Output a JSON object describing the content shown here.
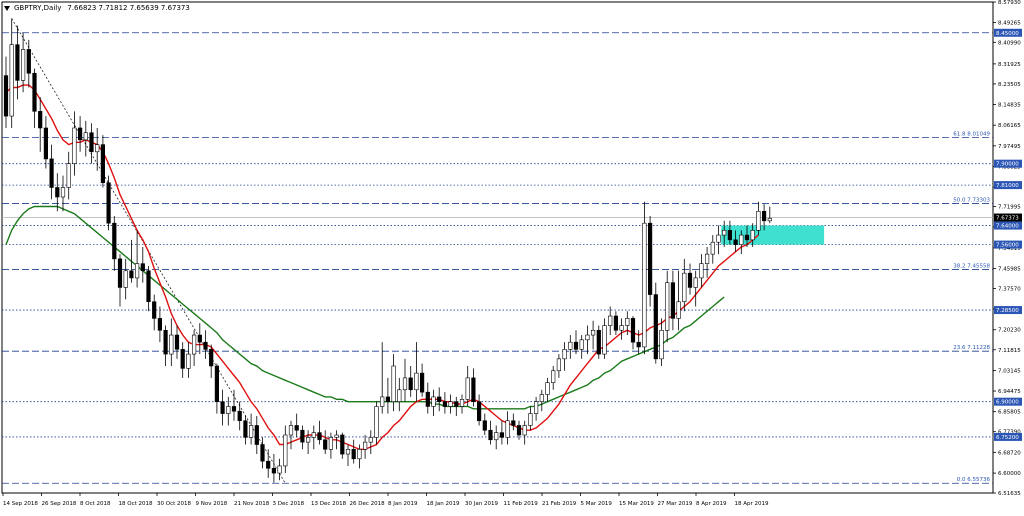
{
  "header": {
    "symbol": "GBPTRY",
    "timeframe": "Daily",
    "ohlc": "7.66823 7.71812 7.65639 7.67373"
  },
  "colors": {
    "background": "#ffffff",
    "grid_line": "#1f3f8f",
    "candle_bull_fill": "#ffffff",
    "candle_bear_fill": "#000000",
    "candle_outline": "#000000",
    "ma_fast": "#e01010",
    "ma_slow": "#1a7a1a",
    "zone": "#40e0d0",
    "fib_label": "#2b56b5",
    "price_tag_bg": "#2b56b5",
    "current_price_bg": "#000000"
  },
  "chart_data": {
    "type": "candlestick",
    "title": "GBPTRY,Daily",
    "ylim": [
      6.51635,
      8.5793
    ],
    "y_ticks": [
      "8.57930",
      "8.49265",
      "8.40990",
      "8.31925",
      "8.23505",
      "8.14835",
      "8.06165",
      "7.97495",
      "7.88825",
      "7.80155",
      "7.71995",
      "7.63485",
      "7.54615",
      "7.45985",
      "7.37570",
      "7.28895",
      "7.20230",
      "7.11815",
      "7.03145",
      "6.94475",
      "6.85805",
      "6.77390",
      "6.68720",
      "6.60000",
      "6.51635"
    ],
    "x_labels": [
      "14 Sep 2018",
      "26 Sep 2018",
      "8 Oct 2018",
      "18 Oct 2018",
      "30 Oct 2018",
      "9 Nov 2018",
      "21 Nov 2018",
      "3 Dec 2018",
      "13 Dec 2018",
      "26 Dec 2018",
      "8 Jan 2019",
      "18 Jan 2019",
      "30 Jan 2019",
      "11 Feb 2019",
      "21 Feb 2019",
      "5 Mar 2019",
      "15 Mar 2019",
      "27 Mar 2019",
      "8 Apr 2019",
      "18 Apr 2019"
    ],
    "horizontal_levels": [
      {
        "value": 8.45,
        "tag": "8.45000",
        "style": "dash"
      },
      {
        "value": 8.01049,
        "label": "61.8 8.01049",
        "style": "dash"
      },
      {
        "value": 7.9,
        "tag": "7.90000",
        "style": "dot"
      },
      {
        "value": 7.81,
        "tag": "7.81000",
        "style": "dot"
      },
      {
        "value": 7.73303,
        "label": "50.0 7.73303",
        "style": "dash"
      },
      {
        "value": 7.64,
        "tag": "7.64000",
        "style": "dot"
      },
      {
        "value": 7.56,
        "tag": "7.56000",
        "style": "dot"
      },
      {
        "value": 7.45558,
        "label": "38.2 7.45558",
        "style": "dash"
      },
      {
        "value": 7.285,
        "tag": "7.28500",
        "style": "dot"
      },
      {
        "value": 7.11228,
        "label": "23.6 7.11228",
        "style": "dash"
      },
      {
        "value": 6.9,
        "tag": "6.90000",
        "style": "dot"
      },
      {
        "value": 6.752,
        "tag": "6.75200",
        "style": "dot"
      },
      {
        "value": 6.55736,
        "label": "0.0 6.55736",
        "style": "dash"
      }
    ],
    "current_price": {
      "value": 7.67373,
      "tag": "7.67373"
    },
    "zone": {
      "from_index": 126,
      "to_index": 143,
      "low": 7.56,
      "high": 7.64
    },
    "fib_trendline": {
      "from_index": 1,
      "from_value": 8.51,
      "to_index": 49,
      "to_value": 6.557
    },
    "ohlc": [
      [
        8.27,
        8.35,
        8.05,
        8.1
      ],
      [
        8.1,
        8.51,
        8.05,
        8.4
      ],
      [
        8.4,
        8.48,
        8.17,
        8.25
      ],
      [
        8.25,
        8.45,
        8.2,
        8.38
      ],
      [
        8.38,
        8.42,
        8.22,
        8.28
      ],
      [
        8.28,
        8.3,
        8.05,
        8.12
      ],
      [
        8.12,
        8.18,
        7.95,
        8.05
      ],
      [
        8.05,
        8.1,
        7.88,
        7.92
      ],
      [
        7.92,
        7.98,
        7.75,
        7.8
      ],
      [
        7.8,
        7.86,
        7.7,
        7.76
      ],
      [
        7.76,
        7.85,
        7.7,
        7.8
      ],
      [
        7.8,
        7.95,
        7.75,
        7.9
      ],
      [
        7.9,
        8.12,
        7.85,
        8.05
      ],
      [
        8.05,
        8.1,
        7.95,
        8.0
      ],
      [
        8.0,
        8.08,
        7.93,
        8.03
      ],
      [
        8.03,
        8.07,
        7.9,
        7.95
      ],
      [
        7.95,
        8.05,
        7.87,
        7.98
      ],
      [
        7.98,
        8.02,
        7.8,
        7.82
      ],
      [
        7.82,
        7.85,
        7.62,
        7.65
      ],
      [
        7.65,
        7.68,
        7.45,
        7.5
      ],
      [
        7.5,
        7.52,
        7.3,
        7.38
      ],
      [
        7.38,
        7.5,
        7.33,
        7.45
      ],
      [
        7.45,
        7.58,
        7.4,
        7.42
      ],
      [
        7.42,
        7.62,
        7.38,
        7.48
      ],
      [
        7.48,
        7.55,
        7.4,
        7.45
      ],
      [
        7.45,
        7.47,
        7.28,
        7.32
      ],
      [
        7.32,
        7.35,
        7.2,
        7.25
      ],
      [
        7.25,
        7.3,
        7.15,
        7.2
      ],
      [
        7.2,
        7.22,
        7.05,
        7.1
      ],
      [
        7.1,
        7.25,
        7.05,
        7.18
      ],
      [
        7.18,
        7.22,
        7.08,
        7.12
      ],
      [
        7.12,
        7.15,
        7.0,
        7.04
      ],
      [
        7.04,
        7.15,
        7.0,
        7.1
      ],
      [
        7.1,
        7.2,
        7.05,
        7.18
      ],
      [
        7.18,
        7.23,
        7.1,
        7.15
      ],
      [
        7.15,
        7.2,
        7.08,
        7.12
      ],
      [
        7.12,
        7.14,
        7.0,
        7.05
      ],
      [
        7.05,
        7.06,
        6.85,
        6.9
      ],
      [
        6.9,
        6.95,
        6.8,
        6.85
      ],
      [
        6.85,
        6.92,
        6.8,
        6.88
      ],
      [
        6.88,
        6.95,
        6.82,
        6.86
      ],
      [
        6.86,
        6.9,
        6.78,
        6.82
      ],
      [
        6.82,
        6.84,
        6.72,
        6.75
      ],
      [
        6.75,
        6.85,
        6.72,
        6.8
      ],
      [
        6.8,
        6.84,
        6.68,
        6.72
      ],
      [
        6.72,
        6.75,
        6.62,
        6.65
      ],
      [
        6.65,
        6.7,
        6.58,
        6.62
      ],
      [
        6.62,
        6.68,
        6.56,
        6.6
      ],
      [
        6.6,
        6.66,
        6.57,
        6.63
      ],
      [
        6.63,
        6.8,
        6.6,
        6.76
      ],
      [
        6.76,
        6.82,
        6.7,
        6.8
      ],
      [
        6.8,
        6.85,
        6.75,
        6.78
      ],
      [
        6.78,
        6.8,
        6.7,
        6.73
      ],
      [
        6.73,
        6.78,
        6.68,
        6.75
      ],
      [
        6.75,
        6.8,
        6.7,
        6.77
      ],
      [
        6.77,
        6.82,
        6.72,
        6.74
      ],
      [
        6.74,
        6.78,
        6.68,
        6.7
      ],
      [
        6.7,
        6.77,
        6.66,
        6.75
      ],
      [
        6.75,
        6.78,
        6.7,
        6.76
      ],
      [
        6.76,
        6.77,
        6.66,
        6.68
      ],
      [
        6.68,
        6.72,
        6.63,
        6.7
      ],
      [
        6.7,
        6.74,
        6.64,
        6.66
      ],
      [
        6.66,
        6.72,
        6.62,
        6.7
      ],
      [
        6.7,
        6.76,
        6.66,
        6.73
      ],
      [
        6.73,
        6.78,
        6.68,
        6.75
      ],
      [
        6.75,
        6.9,
        6.72,
        6.88
      ],
      [
        6.88,
        7.15,
        6.85,
        6.92
      ],
      [
        6.92,
        7.0,
        6.85,
        6.9
      ],
      [
        6.9,
        7.1,
        6.86,
        7.05
      ],
      [
        6.9,
        7.0,
        6.86,
        6.95
      ],
      [
        6.95,
        7.08,
        6.9,
        7.0
      ],
      [
        7.0,
        7.05,
        6.92,
        6.95
      ],
      [
        6.95,
        7.15,
        6.9,
        7.02
      ],
      [
        7.02,
        7.06,
        6.92,
        6.94
      ],
      [
        6.94,
        6.98,
        6.85,
        6.88
      ],
      [
        6.88,
        6.95,
        6.84,
        6.92
      ],
      [
        6.92,
        6.96,
        6.86,
        6.9
      ],
      [
        6.9,
        6.94,
        6.85,
        6.88
      ],
      [
        6.88,
        6.93,
        6.85,
        6.9
      ],
      [
        6.9,
        6.92,
        6.84,
        6.88
      ],
      [
        6.88,
        6.93,
        6.85,
        6.91
      ],
      [
        6.91,
        7.05,
        6.88,
        7.0
      ],
      [
        7.0,
        7.04,
        6.88,
        6.9
      ],
      [
        6.9,
        6.93,
        6.8,
        6.82
      ],
      [
        6.82,
        6.85,
        6.76,
        6.78
      ],
      [
        6.78,
        6.82,
        6.72,
        6.74
      ],
      [
        6.74,
        6.8,
        6.7,
        6.77
      ],
      [
        6.77,
        6.82,
        6.72,
        6.75
      ],
      [
        6.75,
        6.86,
        6.72,
        6.82
      ],
      [
        6.82,
        6.85,
        6.78,
        6.8
      ],
      [
        6.8,
        6.82,
        6.74,
        6.76
      ],
      [
        6.76,
        6.82,
        6.72,
        6.8
      ],
      [
        6.8,
        6.88,
        6.78,
        6.85
      ],
      [
        6.85,
        6.92,
        6.82,
        6.9
      ],
      [
        6.9,
        6.95,
        6.86,
        6.93
      ],
      [
        6.93,
        7.0,
        6.9,
        6.98
      ],
      [
        6.98,
        7.05,
        6.95,
        7.03
      ],
      [
        7.03,
        7.1,
        7.0,
        7.08
      ],
      [
        7.08,
        7.15,
        7.03,
        7.12
      ],
      [
        7.12,
        7.18,
        7.08,
        7.15
      ],
      [
        7.15,
        7.2,
        7.1,
        7.12
      ],
      [
        7.12,
        7.18,
        7.08,
        7.16
      ],
      [
        7.16,
        7.22,
        7.1,
        7.18
      ],
      [
        7.18,
        7.24,
        7.12,
        7.2
      ],
      [
        7.2,
        7.22,
        7.08,
        7.1
      ],
      [
        7.1,
        7.25,
        7.08,
        7.22
      ],
      [
        7.22,
        7.3,
        7.18,
        7.26
      ],
      [
        7.26,
        7.28,
        7.18,
        7.2
      ],
      [
        7.2,
        7.25,
        7.16,
        7.22
      ],
      [
        7.22,
        7.28,
        7.18,
        7.25
      ],
      [
        7.25,
        7.26,
        7.12,
        7.15
      ],
      [
        7.15,
        7.2,
        7.1,
        7.13
      ],
      [
        7.13,
        7.74,
        7.1,
        7.65
      ],
      [
        7.65,
        7.68,
        7.3,
        7.35
      ],
      [
        7.35,
        7.4,
        7.06,
        7.08
      ],
      [
        7.08,
        7.25,
        7.05,
        7.2
      ],
      [
        7.2,
        7.45,
        7.15,
        7.4
      ],
      [
        7.4,
        7.45,
        7.2,
        7.25
      ],
      [
        7.25,
        7.45,
        7.2,
        7.32
      ],
      [
        7.32,
        7.5,
        7.28,
        7.44
      ],
      [
        7.44,
        7.48,
        7.35,
        7.38
      ],
      [
        7.38,
        7.45,
        7.3,
        7.42
      ],
      [
        7.42,
        7.52,
        7.38,
        7.48
      ],
      [
        7.48,
        7.55,
        7.42,
        7.52
      ],
      [
        7.52,
        7.6,
        7.48,
        7.57
      ],
      [
        7.57,
        7.64,
        7.52,
        7.6
      ],
      [
        7.6,
        7.66,
        7.55,
        7.62
      ],
      [
        7.62,
        7.66,
        7.56,
        7.58
      ],
      [
        7.58,
        7.62,
        7.53,
        7.56
      ],
      [
        7.56,
        7.62,
        7.52,
        7.6
      ],
      [
        7.6,
        7.64,
        7.55,
        7.58
      ],
      [
        7.58,
        7.65,
        7.55,
        7.62
      ],
      [
        7.62,
        7.74,
        7.6,
        7.7
      ],
      [
        7.7,
        7.73,
        7.62,
        7.66
      ],
      [
        7.66,
        7.72,
        7.65,
        7.67
      ]
    ],
    "ma_fast": [
      8.2,
      8.22,
      8.22,
      8.23,
      8.23,
      8.21,
      8.17,
      8.13,
      8.09,
      8.04,
      8.0,
      7.98,
      7.99,
      7.99,
      8.0,
      7.99,
      7.98,
      7.95,
      7.9,
      7.84,
      7.77,
      7.72,
      7.67,
      7.62,
      7.58,
      7.53,
      7.46,
      7.4,
      7.34,
      7.27,
      7.22,
      7.18,
      7.15,
      7.14,
      7.14,
      7.14,
      7.13,
      7.1,
      7.07,
      7.04,
      7.01,
      6.98,
      6.94,
      6.9,
      6.87,
      6.83,
      6.79,
      6.76,
      6.72,
      6.72,
      6.73,
      6.74,
      6.75,
      6.76,
      6.76,
      6.76,
      6.75,
      6.74,
      6.74,
      6.73,
      6.72,
      6.71,
      6.7,
      6.7,
      6.71,
      6.72,
      6.75,
      6.77,
      6.8,
      6.82,
      6.85,
      6.88,
      6.9,
      6.91,
      6.91,
      6.91,
      6.91,
      6.9,
      6.9,
      6.89,
      6.89,
      6.9,
      6.91,
      6.9,
      6.88,
      6.86,
      6.84,
      6.82,
      6.81,
      6.8,
      6.79,
      6.78,
      6.78,
      6.79,
      6.81,
      6.83,
      6.86,
      6.89,
      6.93,
      6.97,
      7.0,
      7.03,
      7.06,
      7.09,
      7.12,
      7.13,
      7.15,
      7.17,
      7.19,
      7.2,
      7.19,
      7.18,
      7.19,
      7.21,
      7.22,
      7.23,
      7.25,
      7.26,
      7.28,
      7.3,
      7.32,
      7.35,
      7.38,
      7.41,
      7.44,
      7.47,
      7.49,
      7.51,
      7.53,
      7.55,
      7.56,
      7.58,
      7.6
    ],
    "ma_slow": [
      7.56,
      7.62,
      7.66,
      7.69,
      7.71,
      7.72,
      7.72,
      7.72,
      7.72,
      7.72,
      7.71,
      7.7,
      7.69,
      7.67,
      7.65,
      7.63,
      7.61,
      7.59,
      7.57,
      7.55,
      7.53,
      7.51,
      7.49,
      7.47,
      7.45,
      7.43,
      7.41,
      7.39,
      7.37,
      7.35,
      7.33,
      7.31,
      7.29,
      7.27,
      7.25,
      7.23,
      7.21,
      7.19,
      7.16,
      7.14,
      7.12,
      7.1,
      7.08,
      7.06,
      7.05,
      7.03,
      7.02,
      7.01,
      7.0,
      6.99,
      6.98,
      6.97,
      6.96,
      6.95,
      6.94,
      6.93,
      6.92,
      6.92,
      6.91,
      6.91,
      6.9,
      6.9,
      6.9,
      6.9,
      6.9,
      6.9,
      6.9,
      6.9,
      6.9,
      6.9,
      6.9,
      6.9,
      6.9,
      6.9,
      6.9,
      6.89,
      6.89,
      6.88,
      6.88,
      6.88,
      6.88,
      6.88,
      6.87,
      6.87,
      6.87,
      6.87,
      6.87,
      6.87,
      6.87,
      6.87,
      6.87,
      6.87,
      6.88,
      6.88,
      6.89,
      6.9,
      6.91,
      6.92,
      6.93,
      6.94,
      6.95,
      6.96,
      6.97,
      6.99,
      7.0,
      7.02,
      7.03,
      7.05,
      7.07,
      7.08,
      7.09,
      7.1,
      7.11,
      7.12,
      7.13,
      7.14,
      7.16,
      7.17,
      7.19,
      7.21,
      7.22,
      7.24,
      7.26,
      7.28,
      7.3,
      7.32,
      7.34
    ]
  }
}
